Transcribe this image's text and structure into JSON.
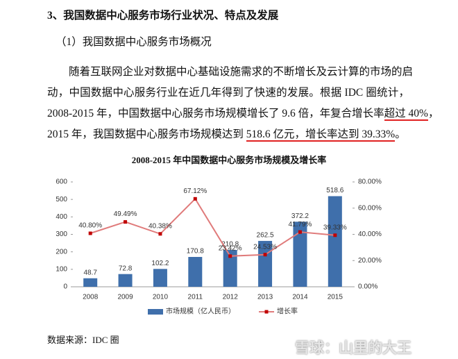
{
  "heading": "3、我国数据中心服务市场行业状况、特点及发展",
  "subheading": "（1）我国数据中心服务市场概况",
  "paragraph": [
    [
      "随着互联网企业对数据中心基础设施需求的不断增长及云计算的市场的启"
    ],
    [
      "动，中国数据中心服务行业在近几年得到了快速的发展。根据 IDC 圈统计，"
    ],
    [
      "2008-2015 年，中国数据中心服务市场规模增长了 9.6 倍，年复合增长率",
      "超过 40%",
      "，"
    ],
    [
      "2015 年，我国数据中心服务市场规模达到 ",
      "518.6 亿元，增长率达到 39.33%",
      "。"
    ]
  ],
  "chart_data": {
    "type": "bar",
    "title": "2008-2015 年中国数据中心服务市场规模及增长率",
    "categories": [
      "2008",
      "2009",
      "2010",
      "2011",
      "2012",
      "2013",
      "2014",
      "2015"
    ],
    "series": [
      {
        "name": "市场规模（亿人民币）",
        "type": "bar",
        "color": "#3f6fab",
        "values": [
          48.7,
          72.8,
          102.2,
          170.8,
          210.8,
          262.5,
          372.2,
          518.6
        ]
      },
      {
        "name": "增长率",
        "type": "line",
        "axis": "y2",
        "color": "#e07b7b",
        "marker_color": "#c00000",
        "values": [
          40.8,
          49.49,
          40.38,
          67.12,
          23.42,
          24.53,
          41.79,
          39.33
        ],
        "value_labels": [
          "40.80%",
          "49.49%",
          "40.38%",
          "67.12%",
          "23.42%",
          "24.53%",
          "41.79%",
          "39.33%"
        ]
      }
    ],
    "ylim": [
      0,
      600
    ],
    "yticks": [
      0,
      100,
      200,
      300,
      400,
      500,
      600
    ],
    "y2lim": [
      0,
      80
    ],
    "y2ticks": [
      {
        "value": 0,
        "label": "0.00%"
      },
      {
        "value": 20,
        "label": "20.00%"
      },
      {
        "value": 40,
        "label": "40.00%"
      },
      {
        "value": 60,
        "label": "60.00%"
      },
      {
        "value": 80,
        "label": "80.00%"
      }
    ],
    "legend": "bottom"
  },
  "source": "数据来源：IDC 圈",
  "watermark": "雪球：山里的大王"
}
